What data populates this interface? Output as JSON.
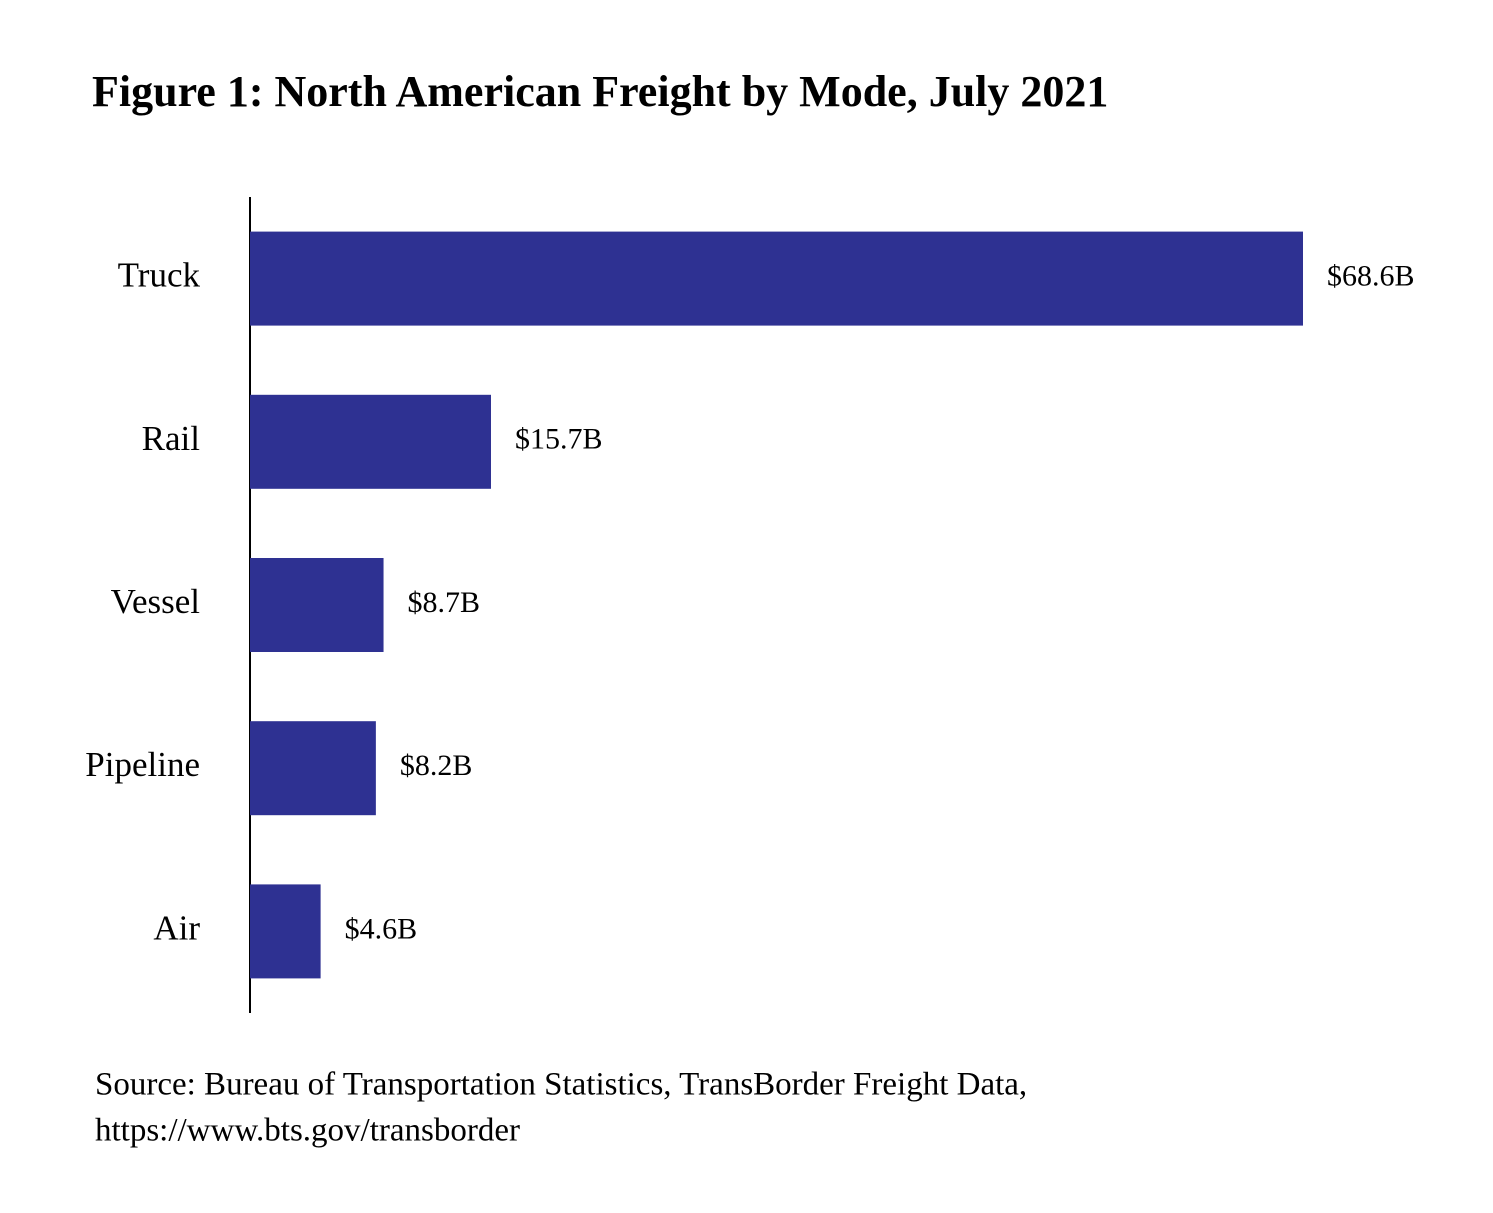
{
  "chart_data": {
    "type": "bar",
    "orientation": "horizontal",
    "title": "Figure 1: North American Freight by Mode, July 2021",
    "categories": [
      "Truck",
      "Rail",
      "Vessel",
      "Pipeline",
      "Air"
    ],
    "values": [
      68.6,
      15.7,
      8.7,
      8.2,
      4.6
    ],
    "value_labels": [
      "$68.6B",
      "$15.7B",
      "$8.7B",
      "$8.2B",
      "$4.6B"
    ],
    "color": "#2e3192",
    "source": [
      "Source: Bureau of Transportation Statistics, TransBorder Freight Data,",
      "https://www.bts.gov/transborder"
    ]
  }
}
